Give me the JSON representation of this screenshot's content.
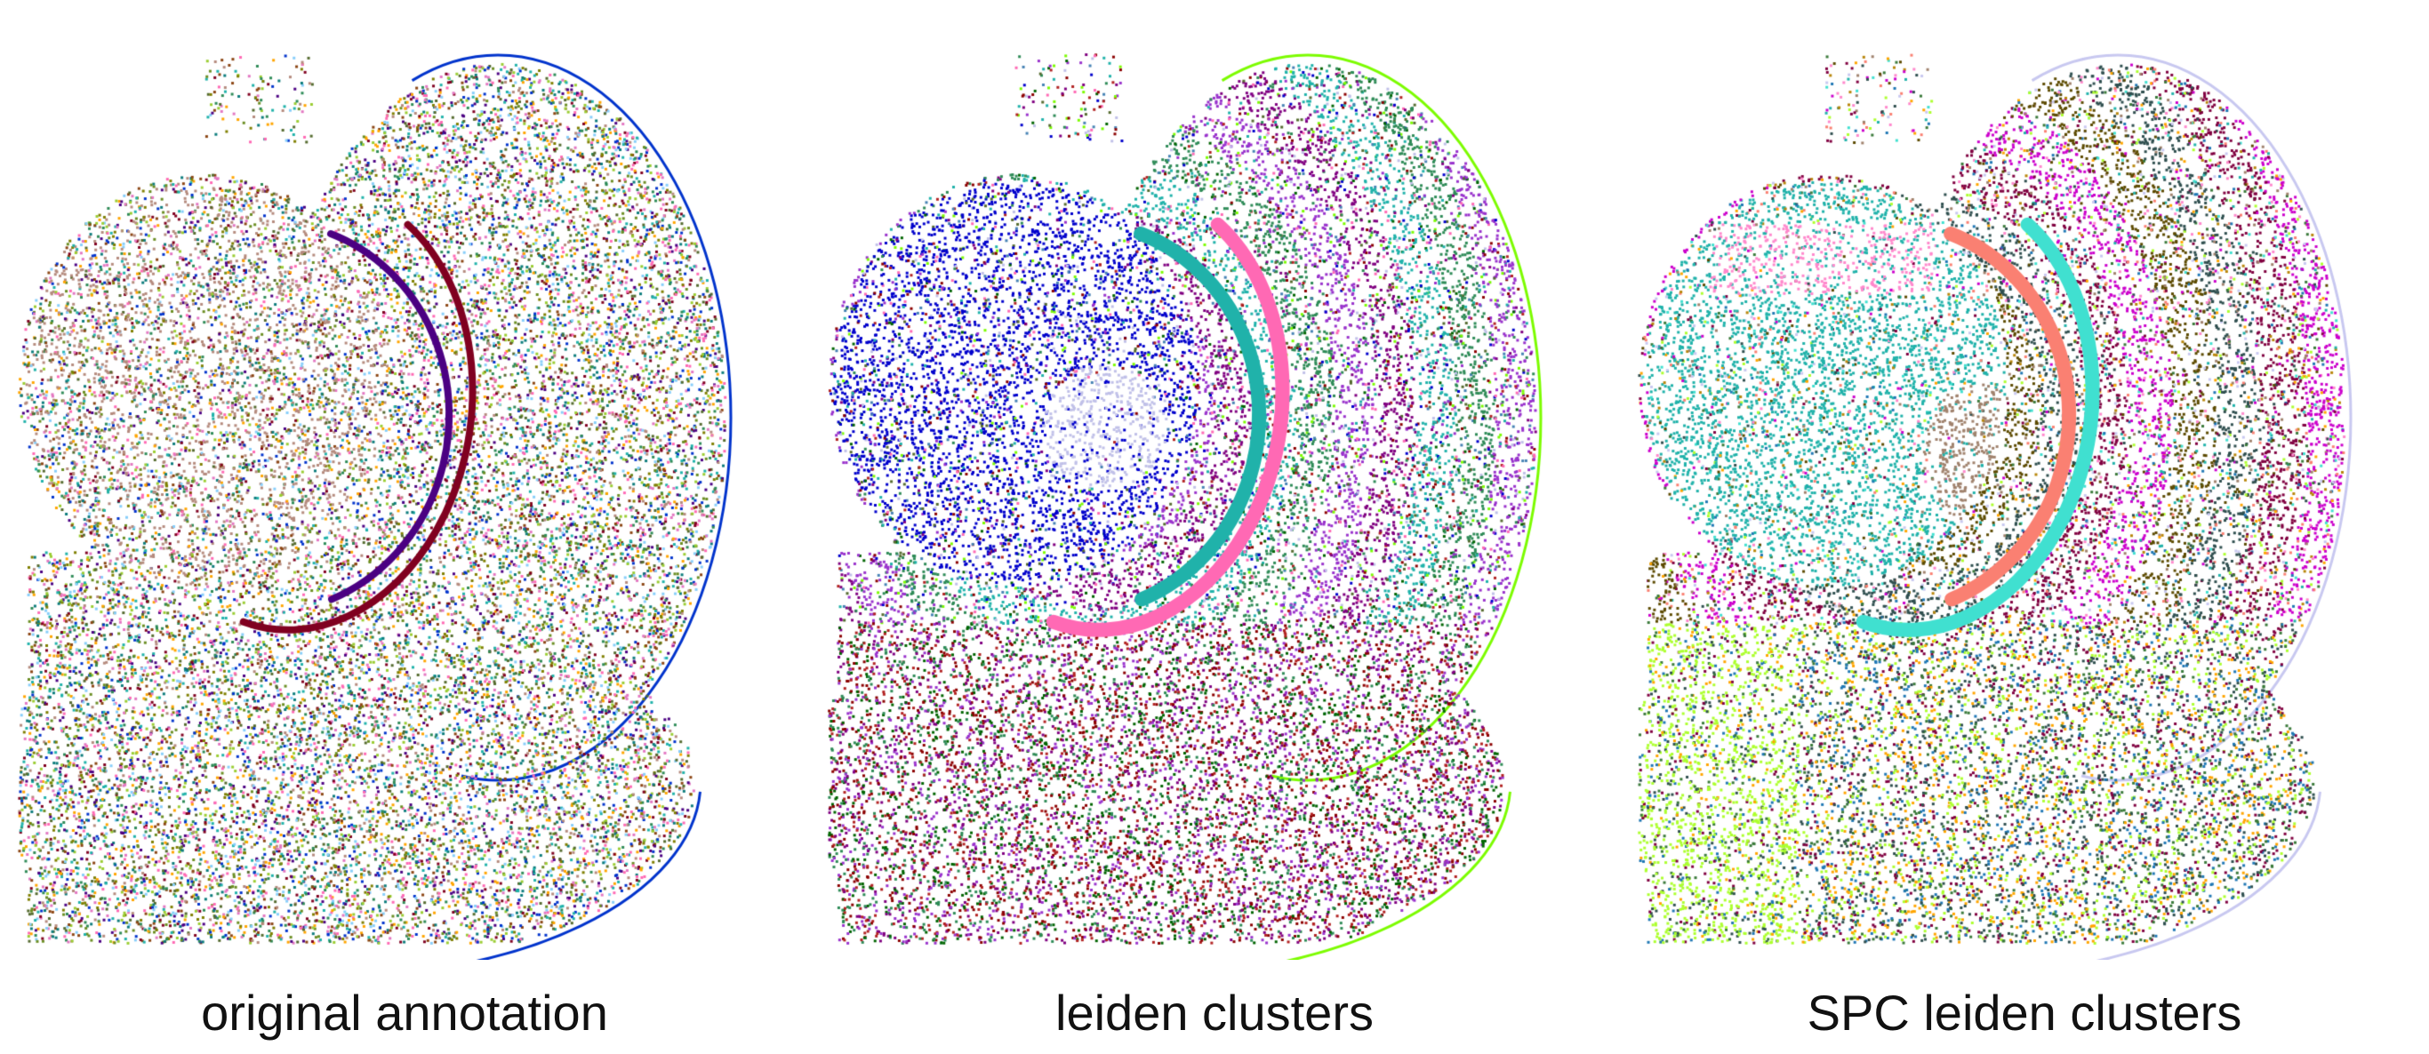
{
  "panels": [
    {
      "label": "original annotation",
      "colors": [
        "#b58b7e",
        "#9acd32",
        "#0c7c7c",
        "#20b2aa",
        "#2e8b57",
        "#800020",
        "#6b8e23",
        "#4b0082",
        "#e377c2",
        "#ff69b4",
        "#87cefa",
        "#ffa500",
        "#0033cc",
        "#7f7f00",
        "#556b2f",
        "#8b4513"
      ],
      "outline_color": "#0033cc"
    },
    {
      "label": "leiden clusters",
      "colors": [
        "#0000cc",
        "#20b2aa",
        "#800080",
        "#9932cc",
        "#2e8b57",
        "#b22222",
        "#8b0000",
        "#ff69b4",
        "#c0c0e8",
        "#7cfc00",
        "#006400",
        "#4682b4",
        "#556b2f"
      ],
      "outline_color": "#7cfc00"
    },
    {
      "label": "SPC leiden clusters",
      "colors": [
        "#20b2aa",
        "#cc00cc",
        "#800040",
        "#40e0d0",
        "#fa8072",
        "#b8860b",
        "#5c4a00",
        "#ffa500",
        "#adff2f",
        "#c8c8f0",
        "#a0826d",
        "#ff88cc",
        "#1f77b4",
        "#2f4f4f",
        "#3a7a3a"
      ],
      "outline_color": "#c8c8f0"
    }
  ]
}
